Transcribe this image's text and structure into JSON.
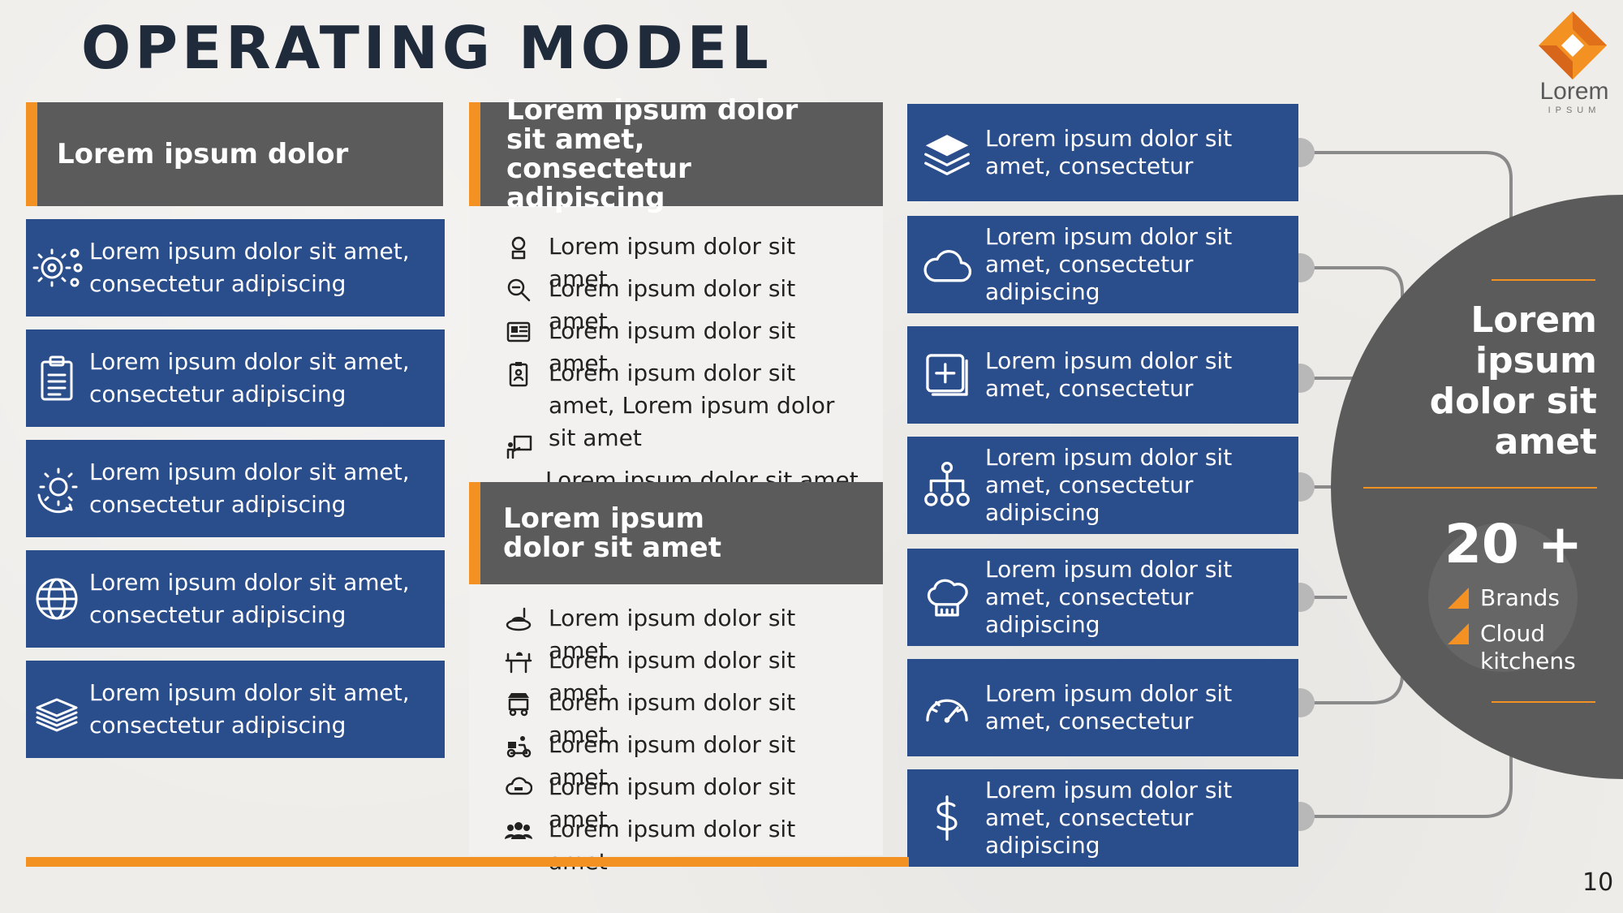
{
  "title": "OPERATING MODEL",
  "logo": {
    "text": "Lorem",
    "sub": "IPSUM"
  },
  "page_number": "10",
  "left": {
    "header": "Lorem ipsum dolor",
    "items": [
      {
        "icon": "gears-network-icon",
        "text": "Lorem ipsum dolor sit amet, consectetur adipiscing"
      },
      {
        "icon": "clipboard-icon",
        "text": "Lorem ipsum dolor sit amet, consectetur adipiscing"
      },
      {
        "icon": "gear-refresh-icon",
        "text": "Lorem ipsum dolor sit amet, consectetur adipiscing"
      },
      {
        "icon": "globe-icon",
        "text": "Lorem ipsum dolor sit amet, consectetur adipiscing"
      },
      {
        "icon": "stack-icon",
        "text": "Lorem ipsum dolor sit amet, consectetur adipiscing"
      }
    ]
  },
  "middle": {
    "header1": "Lorem ipsum dolor sit amet, consectetur adipiscing",
    "list1": [
      {
        "icon": "chef-icon",
        "text": "Lorem ipsum dolor sit amet"
      },
      {
        "icon": "magnifier-icon",
        "text": "Lorem ipsum dolor sit amet"
      },
      {
        "icon": "newspaper-icon",
        "text": "Lorem ipsum dolor sit amet"
      },
      {
        "icon": "clipboard-user-icon",
        "text": "Lorem ipsum dolor sit amet, Lorem ipsum dolor sit amet"
      },
      {
        "icon": "presenter-icon",
        "text": ""
      }
    ],
    "overflow_text": "Lorem ipsum dolor sit amet",
    "header2": "Lorem ipsum dolor sit amet",
    "list2": [
      {
        "icon": "dish-icon",
        "text": "Lorem ipsum dolor sit amet"
      },
      {
        "icon": "restaurant-table-icon",
        "text": "Lorem ipsum dolor sit amet"
      },
      {
        "icon": "shop-delivery-icon",
        "text": "Lorem ipsum dolor sit amet"
      },
      {
        "icon": "delivery-scooter-icon",
        "text": "Lorem ipsum dolor sit amet"
      },
      {
        "icon": "cloud-kitchen-icon",
        "text": "Lorem ipsum dolor sit amet"
      },
      {
        "icon": "group-icon",
        "text": "Lorem ipsum dolor sit amet"
      }
    ]
  },
  "right": {
    "items": [
      {
        "icon": "layers-icon",
        "line1": "Lorem ipsum dolor sit",
        "line2": "amet, consectetur"
      },
      {
        "icon": "cloud-icon",
        "line1": "Lorem ipsum dolor sit",
        "line2": "amet, consectetur adipiscing"
      },
      {
        "icon": "plus-box-icon",
        "line1": "Lorem ipsum dolor sit",
        "line2": "amet, consectetur"
      },
      {
        "icon": "hierarchy-icon",
        "line1": "Lorem ipsum dolor sit",
        "line2": "amet, consectetur adipiscing"
      },
      {
        "icon": "chef-hat-icon",
        "line1": "Lorem ipsum dolor sit",
        "line2": "amet, consectetur adipiscing"
      },
      {
        "icon": "gauge-icon",
        "line1": "Lorem ipsum dolor sit",
        "line2": "amet, consectetur"
      },
      {
        "icon": "dollar-icon",
        "line1": "Lorem ipsum dolor sit",
        "line2": "amet, consectetur adipiscing"
      }
    ]
  },
  "circle": {
    "heading": "Lorem ipsum dolor sit amet",
    "stat": "20 +",
    "bullets": [
      "Brands",
      "Cloud kitchens"
    ]
  },
  "colors": {
    "accent": "#f39223",
    "blue": "#2a4d8c",
    "gray": "#5b5b5b",
    "title": "#1f2a3a"
  }
}
